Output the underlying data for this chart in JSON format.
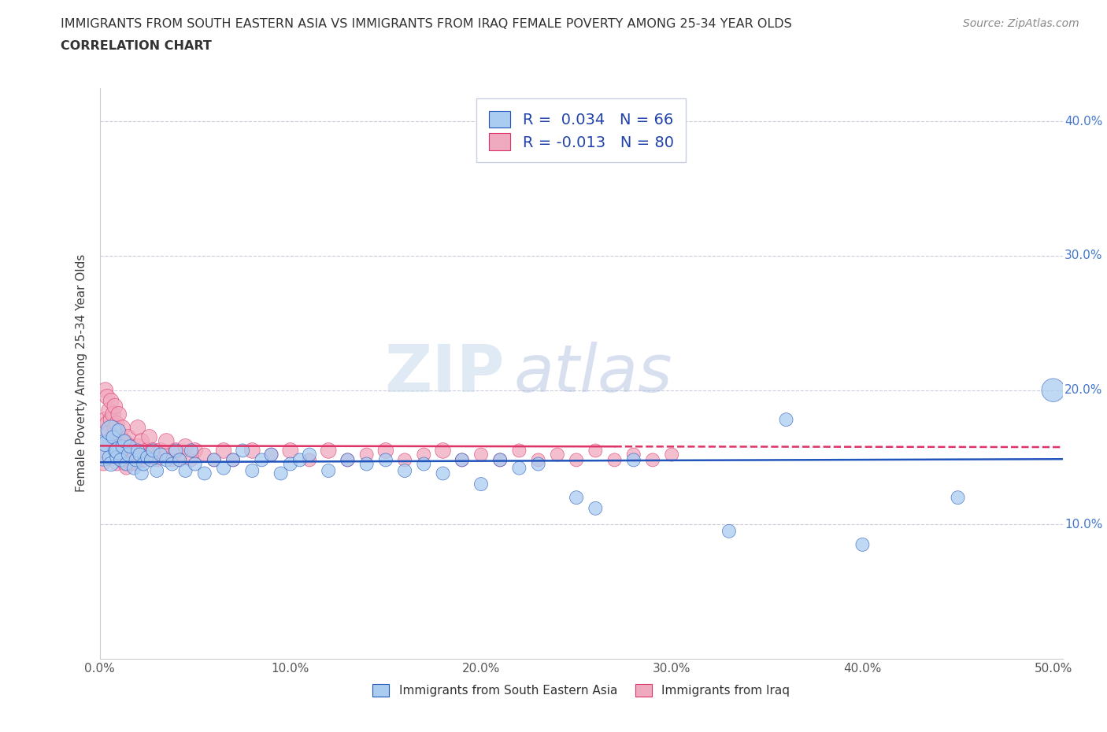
{
  "title_line1": "IMMIGRANTS FROM SOUTH EASTERN ASIA VS IMMIGRANTS FROM IRAQ FEMALE POVERTY AMONG 25-34 YEAR OLDS",
  "title_line2": "CORRELATION CHART",
  "source": "Source: ZipAtlas.com",
  "ylabel": "Female Poverty Among 25-34 Year Olds",
  "xlim": [
    0,
    0.505
  ],
  "ylim": [
    0,
    0.425
  ],
  "watermark_zip": "ZIP",
  "watermark_atlas": "atlas",
  "legend_r_blue": "R =  0.034   N = 66",
  "legend_r_pink": "R = -0.013   N = 80",
  "blue_color": "#aaccf0",
  "pink_color": "#f0aac0",
  "blue_line_color": "#2255bb",
  "pink_line_color": "#dd3366",
  "title_color": "#333333",
  "source_color": "#888888",
  "grid_color": "#ccccdd",
  "ytick_label_color": "#4477cc",
  "sea_x": [
    0.002,
    0.003,
    0.005,
    0.006,
    0.006,
    0.007,
    0.008,
    0.009,
    0.01,
    0.01,
    0.011,
    0.012,
    0.013,
    0.014,
    0.015,
    0.016,
    0.018,
    0.019,
    0.02,
    0.021,
    0.022,
    0.023,
    0.025,
    0.027,
    0.028,
    0.03,
    0.032,
    0.035,
    0.038,
    0.04,
    0.042,
    0.045,
    0.048,
    0.05,
    0.055,
    0.06,
    0.065,
    0.07,
    0.075,
    0.08,
    0.085,
    0.09,
    0.095,
    0.1,
    0.105,
    0.11,
    0.12,
    0.13,
    0.14,
    0.15,
    0.16,
    0.17,
    0.18,
    0.19,
    0.2,
    0.21,
    0.22,
    0.23,
    0.25,
    0.26,
    0.28,
    0.33,
    0.36,
    0.4,
    0.45,
    0.5
  ],
  "sea_y": [
    0.155,
    0.16,
    0.15,
    0.17,
    0.145,
    0.165,
    0.155,
    0.15,
    0.155,
    0.17,
    0.148,
    0.158,
    0.162,
    0.145,
    0.152,
    0.158,
    0.142,
    0.148,
    0.155,
    0.152,
    0.138,
    0.145,
    0.15,
    0.148,
    0.155,
    0.14,
    0.152,
    0.148,
    0.145,
    0.155,
    0.148,
    0.14,
    0.155,
    0.145,
    0.138,
    0.148,
    0.142,
    0.148,
    0.155,
    0.14,
    0.148,
    0.152,
    0.138,
    0.145,
    0.148,
    0.152,
    0.14,
    0.148,
    0.145,
    0.148,
    0.14,
    0.145,
    0.138,
    0.148,
    0.13,
    0.148,
    0.142,
    0.145,
    0.12,
    0.112,
    0.148,
    0.095,
    0.178,
    0.085,
    0.12,
    0.2
  ],
  "sea_sizes": [
    800,
    200,
    150,
    350,
    180,
    150,
    150,
    150,
    280,
    150,
    150,
    150,
    150,
    150,
    150,
    150,
    150,
    150,
    150,
    150,
    150,
    150,
    150,
    150,
    150,
    150,
    150,
    150,
    150,
    150,
    150,
    150,
    150,
    150,
    150,
    150,
    150,
    150,
    150,
    150,
    150,
    150,
    150,
    150,
    150,
    150,
    150,
    150,
    150,
    150,
    150,
    150,
    150,
    150,
    150,
    150,
    150,
    150,
    150,
    150,
    150,
    150,
    150,
    150,
    150,
    450
  ],
  "iraq_x": [
    0.001,
    0.002,
    0.003,
    0.003,
    0.004,
    0.004,
    0.005,
    0.005,
    0.005,
    0.006,
    0.006,
    0.007,
    0.007,
    0.008,
    0.008,
    0.008,
    0.009,
    0.009,
    0.009,
    0.01,
    0.01,
    0.01,
    0.011,
    0.011,
    0.012,
    0.012,
    0.013,
    0.013,
    0.014,
    0.014,
    0.015,
    0.015,
    0.016,
    0.016,
    0.017,
    0.018,
    0.019,
    0.02,
    0.02,
    0.022,
    0.024,
    0.025,
    0.026,
    0.028,
    0.03,
    0.032,
    0.035,
    0.038,
    0.04,
    0.042,
    0.045,
    0.048,
    0.05,
    0.055,
    0.06,
    0.065,
    0.07,
    0.08,
    0.09,
    0.1,
    0.11,
    0.12,
    0.13,
    0.14,
    0.15,
    0.16,
    0.17,
    0.18,
    0.19,
    0.2,
    0.21,
    0.22,
    0.23,
    0.24,
    0.25,
    0.26,
    0.27,
    0.28,
    0.29,
    0.3
  ],
  "iraq_y": [
    0.155,
    0.145,
    0.178,
    0.2,
    0.175,
    0.195,
    0.168,
    0.185,
    0.162,
    0.178,
    0.192,
    0.165,
    0.182,
    0.155,
    0.172,
    0.188,
    0.145,
    0.162,
    0.175,
    0.155,
    0.168,
    0.182,
    0.148,
    0.165,
    0.158,
    0.172,
    0.145,
    0.162,
    0.142,
    0.155,
    0.152,
    0.165,
    0.145,
    0.158,
    0.148,
    0.155,
    0.145,
    0.158,
    0.172,
    0.162,
    0.148,
    0.155,
    0.165,
    0.155,
    0.148,
    0.155,
    0.162,
    0.148,
    0.155,
    0.148,
    0.158,
    0.148,
    0.155,
    0.152,
    0.148,
    0.155,
    0.148,
    0.155,
    0.152,
    0.155,
    0.148,
    0.155,
    0.148,
    0.152,
    0.155,
    0.148,
    0.152,
    0.155,
    0.148,
    0.152,
    0.148,
    0.155,
    0.148,
    0.152,
    0.148,
    0.155,
    0.148,
    0.152,
    0.148,
    0.152
  ],
  "iraq_sizes": [
    150,
    150,
    200,
    200,
    200,
    200,
    200,
    200,
    150,
    200,
    200,
    200,
    200,
    200,
    200,
    200,
    150,
    200,
    200,
    200,
    200,
    200,
    150,
    200,
    200,
    200,
    150,
    200,
    150,
    200,
    200,
    200,
    150,
    200,
    150,
    200,
    150,
    200,
    200,
    200,
    150,
    200,
    200,
    200,
    150,
    200,
    200,
    150,
    200,
    150,
    200,
    150,
    200,
    150,
    150,
    200,
    150,
    200,
    150,
    200,
    150,
    200,
    150,
    150,
    200,
    150,
    150,
    200,
    150,
    150,
    150,
    150,
    150,
    150,
    150,
    150,
    150,
    150,
    150,
    150
  ]
}
